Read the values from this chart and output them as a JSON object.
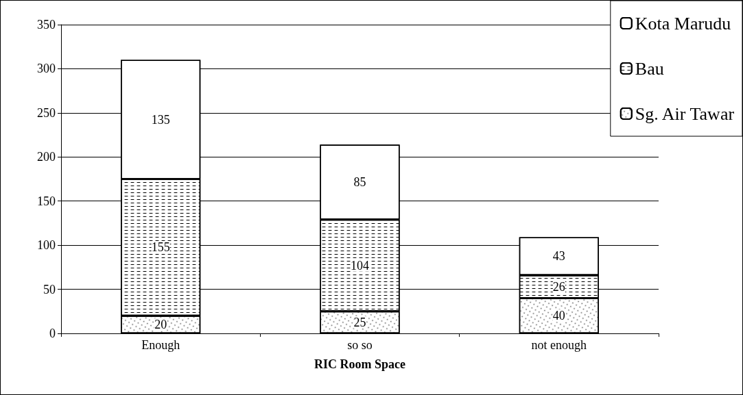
{
  "chart_data": {
    "type": "bar",
    "stacked": true,
    "xlabel": "RIC Room Space",
    "categories": [
      "Enough",
      "so so",
      "not enough"
    ],
    "series": [
      {
        "name": "Sg. Air Tawar",
        "color": "#ffffff",
        "values": [
          20,
          25,
          40
        ]
      },
      {
        "name": "Bau",
        "color": "#ffffff",
        "values": [
          155,
          104,
          26
        ]
      },
      {
        "name": "Kota Marudu",
        "color": "#ffffff",
        "values": [
          135,
          85,
          43
        ]
      }
    ],
    "ylim": [
      0,
      350
    ],
    "yticks": [
      0,
      50,
      100,
      150,
      200,
      250,
      300,
      350
    ],
    "grid": "y",
    "legend": "top right",
    "data_labels": true
  }
}
